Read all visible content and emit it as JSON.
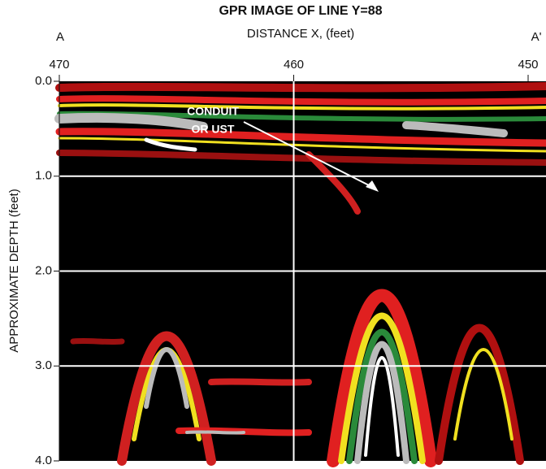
{
  "chart_data": {
    "type": "image",
    "title": "GPR IMAGE OF LINE Y=88",
    "xlabel": "DISTANCE X, (feet)",
    "ylabel": "APPROXIMATE DEPTH (feet)",
    "left_marker": "A",
    "right_marker": "A'",
    "annotation": [
      "CONDUIT",
      "OR UST"
    ],
    "xlim": [
      470,
      450
    ],
    "xticks": [
      470,
      460,
      450
    ],
    "ylim": [
      0,
      4
    ],
    "yticks": [
      {
        "value": 0,
        "label": "0.0"
      },
      {
        "value": 1,
        "label": "1.0"
      },
      {
        "value": 2,
        "label": "2.0"
      },
      {
        "value": 3,
        "label": "3.0"
      },
      {
        "value": 4,
        "label": "4.0"
      }
    ],
    "grid": true
  }
}
